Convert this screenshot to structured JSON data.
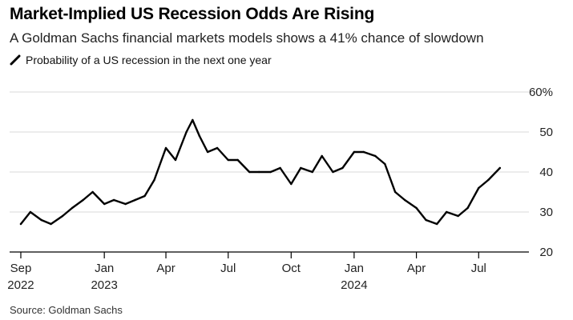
{
  "chart_data": {
    "type": "line",
    "title": "Market-Implied US Recession Odds Are Rising",
    "subtitle": "A Goldman Sachs financial markets models shows a 41% chance of slowdown",
    "series": [
      {
        "name": "Probability of a US recession in the next one year",
        "color": "#000000",
        "x": [
          "2022-09-01",
          "2022-09-15",
          "2022-10-01",
          "2022-10-15",
          "2022-11-01",
          "2022-11-15",
          "2022-12-01",
          "2022-12-15",
          "2023-01-01",
          "2023-01-15",
          "2023-02-01",
          "2023-02-15",
          "2023-03-01",
          "2023-03-15",
          "2023-04-01",
          "2023-04-15",
          "2023-05-01",
          "2023-05-10",
          "2023-05-20",
          "2023-06-01",
          "2023-06-15",
          "2023-07-01",
          "2023-07-15",
          "2023-08-01",
          "2023-08-15",
          "2023-09-01",
          "2023-09-15",
          "2023-10-01",
          "2023-10-15",
          "2023-11-01",
          "2023-11-15",
          "2023-12-01",
          "2023-12-15",
          "2024-01-01",
          "2024-01-15",
          "2024-02-01",
          "2024-02-15",
          "2024-03-01",
          "2024-03-15",
          "2024-04-01",
          "2024-04-15",
          "2024-05-01",
          "2024-05-15",
          "2024-06-01",
          "2024-06-15",
          "2024-07-01",
          "2024-07-15",
          "2024-08-01"
        ],
        "values": [
          27,
          30,
          28,
          27,
          29,
          31,
          33,
          35,
          32,
          33,
          32,
          33,
          34,
          38,
          46,
          43,
          50,
          53,
          49,
          45,
          46,
          43,
          43,
          40,
          40,
          40,
          41,
          37,
          41,
          40,
          44,
          40,
          41,
          45,
          45,
          44,
          42,
          35,
          33,
          31,
          28,
          27,
          30,
          29,
          31,
          36,
          38,
          41
        ]
      }
    ],
    "x_ticks": [
      {
        "label": "Sep",
        "year": "2022",
        "date": "2022-09-01"
      },
      {
        "label": "Jan",
        "year": "2023",
        "date": "2023-01-01"
      },
      {
        "label": "Apr",
        "year": "",
        "date": "2023-04-01"
      },
      {
        "label": "Jul",
        "year": "",
        "date": "2023-07-01"
      },
      {
        "label": "Oct",
        "year": "",
        "date": "2023-10-01"
      },
      {
        "label": "Jan",
        "year": "2024",
        "date": "2024-01-01"
      },
      {
        "label": "Apr",
        "year": "",
        "date": "2024-04-01"
      },
      {
        "label": "Jul",
        "year": "",
        "date": "2024-07-01"
      }
    ],
    "y_ticks": [
      20,
      30,
      40,
      50,
      60
    ],
    "y_tick_labels": [
      "20",
      "30",
      "40",
      "50",
      "60%"
    ],
    "ylim": [
      20,
      60
    ],
    "xlim": [
      "2022-08-25",
      "2024-08-20"
    ],
    "grid": true,
    "source": "Source: Goldman Sachs",
    "xlabel": "",
    "ylabel": ""
  }
}
